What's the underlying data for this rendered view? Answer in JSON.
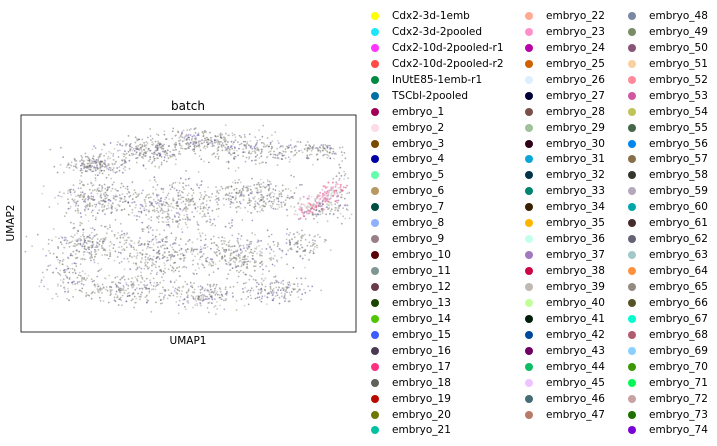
{
  "chart_data": {
    "type": "scatter",
    "title": "batch",
    "xlabel": "UMAP1",
    "ylabel": "UMAP2",
    "legend_position": "right",
    "grid": false,
    "series": [
      {
        "name": "Cdx2-3d-1emb",
        "color": "#ffff00"
      },
      {
        "name": "Cdx2-3d-2pooled",
        "color": "#1ce6ff"
      },
      {
        "name": "Cdx2-10d-2pooled-r1",
        "color": "#ff34ff"
      },
      {
        "name": "Cdx2-10d-2pooled-r2",
        "color": "#ff4a46"
      },
      {
        "name": "InUtE85-1emb-r1",
        "color": "#008941"
      },
      {
        "name": "TSCbl-2pooled",
        "color": "#006fa6"
      },
      {
        "name": "embryo_1",
        "color": "#a30059"
      },
      {
        "name": "embryo_2",
        "color": "#ffdbe5"
      },
      {
        "name": "embryo_3",
        "color": "#7a4900"
      },
      {
        "name": "embryo_4",
        "color": "#0000a6"
      },
      {
        "name": "embryo_5",
        "color": "#63ffac"
      },
      {
        "name": "embryo_6",
        "color": "#b79762"
      },
      {
        "name": "embryo_7",
        "color": "#004d43"
      },
      {
        "name": "embryo_8",
        "color": "#8fb0ff"
      },
      {
        "name": "embryo_9",
        "color": "#997d87"
      },
      {
        "name": "embryo_10",
        "color": "#5a0007"
      },
      {
        "name": "embryo_11",
        "color": "#809693"
      },
      {
        "name": "embryo_12",
        "color": "#6a3a4c"
      },
      {
        "name": "embryo_13",
        "color": "#1b4400"
      },
      {
        "name": "embryo_14",
        "color": "#4fc601"
      },
      {
        "name": "embryo_15",
        "color": "#3b5dff"
      },
      {
        "name": "embryo_16",
        "color": "#4a3b53"
      },
      {
        "name": "embryo_17",
        "color": "#ff2f80"
      },
      {
        "name": "embryo_18",
        "color": "#61615a"
      },
      {
        "name": "embryo_19",
        "color": "#ba0900"
      },
      {
        "name": "embryo_20",
        "color": "#6b7900"
      },
      {
        "name": "embryo_21",
        "color": "#00c2a0"
      },
      {
        "name": "embryo_22",
        "color": "#ffaa92"
      },
      {
        "name": "embryo_23",
        "color": "#ff90c9"
      },
      {
        "name": "embryo_24",
        "color": "#b903aa"
      },
      {
        "name": "embryo_25",
        "color": "#d16100"
      },
      {
        "name": "embryo_26",
        "color": "#ddefff"
      },
      {
        "name": "embryo_27",
        "color": "#000035"
      },
      {
        "name": "embryo_28",
        "color": "#7b4f4b"
      },
      {
        "name": "embryo_29",
        "color": "#a1c299"
      },
      {
        "name": "embryo_30",
        "color": "#300018"
      },
      {
        "name": "embryo_31",
        "color": "#0aa6d8"
      },
      {
        "name": "embryo_32",
        "color": "#013349"
      },
      {
        "name": "embryo_33",
        "color": "#00846f"
      },
      {
        "name": "embryo_34",
        "color": "#372101"
      },
      {
        "name": "embryo_35",
        "color": "#ffb500"
      },
      {
        "name": "embryo_36",
        "color": "#c2ffed"
      },
      {
        "name": "embryo_37",
        "color": "#a079bf"
      },
      {
        "name": "embryo_38",
        "color": "#cc0744"
      },
      {
        "name": "embryo_39",
        "color": "#c0b9b2"
      },
      {
        "name": "embryo_40",
        "color": "#c2ff99"
      },
      {
        "name": "embryo_41",
        "color": "#001e09"
      },
      {
        "name": "embryo_42",
        "color": "#00489c"
      },
      {
        "name": "embryo_43",
        "color": "#6f0062"
      },
      {
        "name": "embryo_44",
        "color": "#0cbd66"
      },
      {
        "name": "embryo_45",
        "color": "#eec3ff"
      },
      {
        "name": "embryo_46",
        "color": "#456d75"
      },
      {
        "name": "embryo_47",
        "color": "#b77b68"
      },
      {
        "name": "embryo_48",
        "color": "#7a87a1"
      },
      {
        "name": "embryo_49",
        "color": "#788d66"
      },
      {
        "name": "embryo_50",
        "color": "#885578"
      },
      {
        "name": "embryo_51",
        "color": "#fad09f"
      },
      {
        "name": "embryo_52",
        "color": "#ff8a9a"
      },
      {
        "name": "embryo_53",
        "color": "#d157a0"
      },
      {
        "name": "embryo_54",
        "color": "#bec459"
      },
      {
        "name": "embryo_55",
        "color": "#456648"
      },
      {
        "name": "embryo_56",
        "color": "#0086ed"
      },
      {
        "name": "embryo_57",
        "color": "#886f4c"
      },
      {
        "name": "embryo_58",
        "color": "#34362d"
      },
      {
        "name": "embryo_59",
        "color": "#b4a8bd"
      },
      {
        "name": "embryo_60",
        "color": "#00a6aa"
      },
      {
        "name": "embryo_61",
        "color": "#452c2c"
      },
      {
        "name": "embryo_62",
        "color": "#636375"
      },
      {
        "name": "embryo_63",
        "color": "#a3c8c9"
      },
      {
        "name": "embryo_64",
        "color": "#ff913f"
      },
      {
        "name": "embryo_65",
        "color": "#938a81"
      },
      {
        "name": "embryo_66",
        "color": "#575329"
      },
      {
        "name": "embryo_67",
        "color": "#00fecf"
      },
      {
        "name": "embryo_68",
        "color": "#b05b6f"
      },
      {
        "name": "embryo_69",
        "color": "#8cd0ff"
      },
      {
        "name": "embryo_70",
        "color": "#3b9700"
      },
      {
        "name": "embryo_71",
        "color": "#04f757"
      },
      {
        "name": "embryo_72",
        "color": "#c8a1a1"
      },
      {
        "name": "embryo_73",
        "color": "#1e6e00"
      },
      {
        "name": "embryo_74",
        "color": "#7900d7"
      }
    ]
  }
}
